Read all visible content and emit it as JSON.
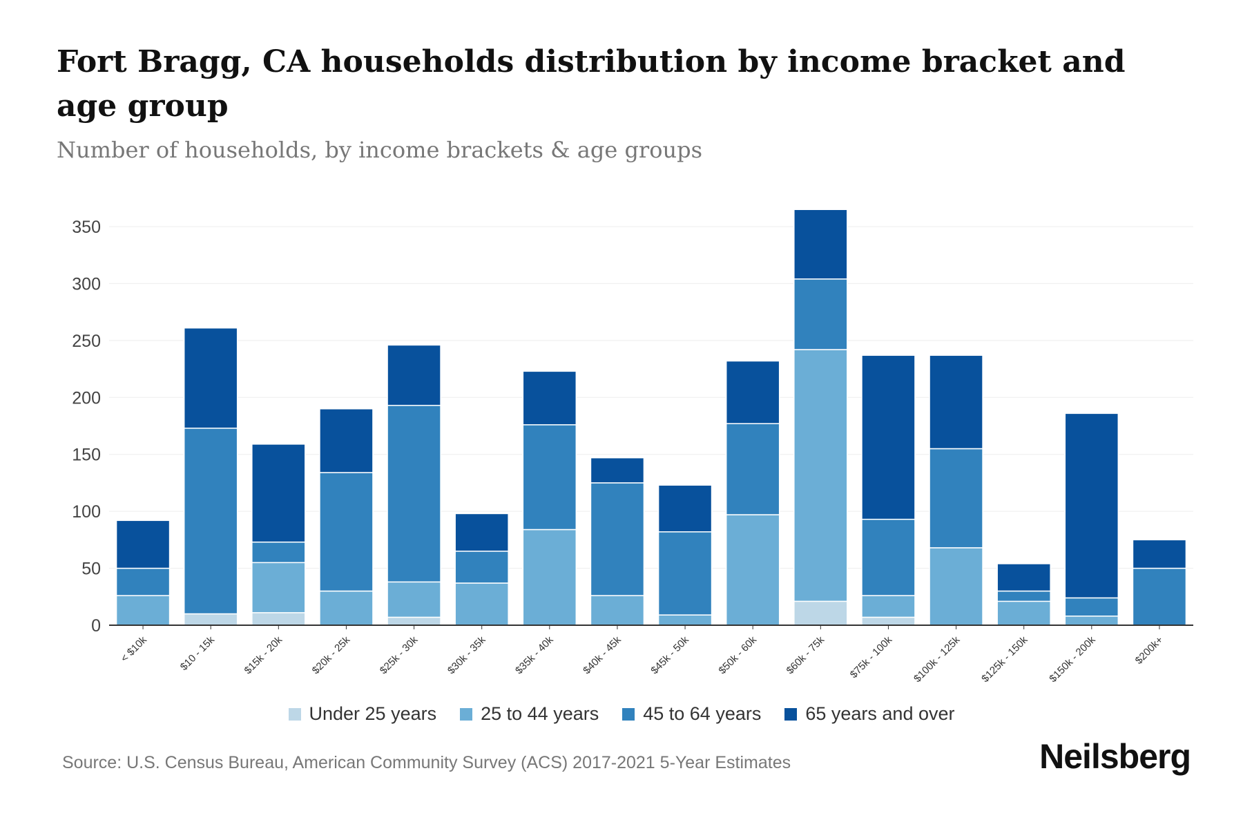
{
  "chart_data": {
    "type": "bar",
    "stacked": true,
    "title": "Fort Bragg, CA households distribution by income bracket and age group",
    "subtitle": "Number of households, by income brackets & age groups",
    "xlabel": "",
    "ylabel": "",
    "ylim": [
      0,
      365
    ],
    "yticks": [
      0,
      50,
      100,
      150,
      200,
      250,
      300,
      350
    ],
    "grid": true,
    "legend_position": "bottom",
    "categories": [
      "< $10k",
      "$10 - 15k",
      "$15k - 20k",
      "$20k - 25k",
      "$25k - 30k",
      "$30k - 35k",
      "$35k - 40k",
      "$40k - 45k",
      "$45k - 50k",
      "$50k - 60k",
      "$60k - 75k",
      "$75k - 100k",
      "$100k - 125k",
      "$125k - 150k",
      "$150k - 200k",
      "$200k+"
    ],
    "series": [
      {
        "name": "Under 25 years",
        "color": "#bdd7e7",
        "values": [
          0,
          10,
          11,
          0,
          7,
          0,
          0,
          0,
          0,
          0,
          21,
          7,
          0,
          0,
          0,
          0
        ]
      },
      {
        "name": "25 to 44 years",
        "color": "#6baed6",
        "values": [
          26,
          0,
          44,
          30,
          31,
          37,
          84,
          26,
          9,
          97,
          221,
          19,
          68,
          21,
          8,
          0
        ]
      },
      {
        "name": "45 to 64 years",
        "color": "#3182bd",
        "values": [
          24,
          163,
          18,
          104,
          155,
          28,
          92,
          99,
          73,
          80,
          62,
          67,
          87,
          9,
          16,
          50
        ]
      },
      {
        "name": "65 years and over",
        "color": "#08519c",
        "values": [
          42,
          88,
          86,
          56,
          53,
          33,
          47,
          22,
          41,
          55,
          61,
          144,
          82,
          24,
          162,
          25
        ]
      }
    ]
  },
  "footer": {
    "source": "Source: U.S. Census Bureau, American Community Survey (ACS) 2017-2021 5-Year Estimates",
    "logo": "Neilsberg"
  }
}
